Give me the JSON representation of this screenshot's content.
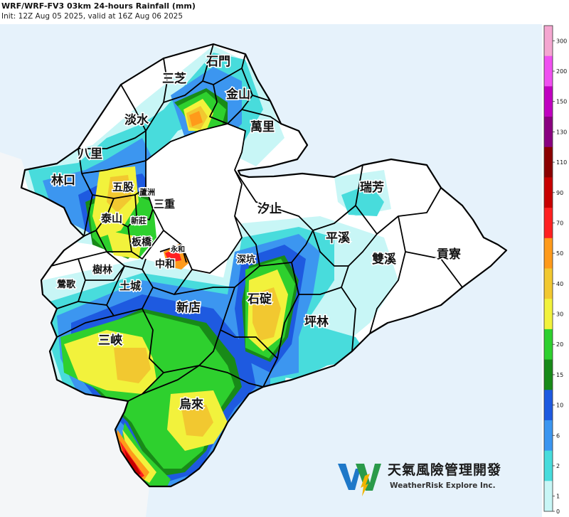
{
  "header": {
    "title": "WRF/WRF-FV3 03km 24-hours Rainfall (mm)",
    "subtitle": "Init: 12Z Aug 05 2025, valid at 16Z Aug 06 2025"
  },
  "districts": {
    "shimen": "石門",
    "sanzhi": "三芝",
    "jinshan": "金山",
    "tamsui": "淡水",
    "wanli": "萬里",
    "bali": "八里",
    "linkou": "林口",
    "wugu": "五股",
    "luzhou": "蘆洲",
    "taishan": "泰山",
    "sanchong": "三重",
    "xinzhuang": "新莊",
    "banqiao": "板橋",
    "yonghe": "永和",
    "zhonghe": "中和",
    "shulin": "樹林",
    "yingge": "鶯歌",
    "tucheng": "土城",
    "xindian": "新店",
    "sanxia": "三峽",
    "shenkeng": "深坑",
    "shiding": "石碇",
    "xizhi": "汐止",
    "pingxi": "平溪",
    "ruifang": "瑞芳",
    "shuangxi": "雙溪",
    "gongliao": "貢寮",
    "pinglin": "坪林",
    "wulai": "烏來"
  },
  "colorbar": {
    "unit": "mm",
    "ticks": [
      "300",
      "200",
      "150",
      "130",
      "110",
      "90",
      "70",
      "50",
      "40",
      "30",
      "20",
      "15",
      "10",
      "6",
      "2",
      "1",
      "0"
    ],
    "bins": [
      {
        "from": "200",
        "to": "300",
        "color": "#f4a6d0"
      },
      {
        "from": "150",
        "to": "200",
        "color": "#f050f0"
      },
      {
        "from": "130",
        "to": "150",
        "color": "#c000c0"
      },
      {
        "from": "110",
        "to": "130",
        "color": "#8a0080"
      },
      {
        "from": "90",
        "to": "110",
        "color": "#8b0000"
      },
      {
        "from": "70",
        "to": "90",
        "color": "#c80000"
      },
      {
        "from": "50",
        "to": "70",
        "color": "#ff2020"
      },
      {
        "from": "40",
        "to": "50",
        "color": "#ff9a1a"
      },
      {
        "from": "30",
        "to": "40",
        "color": "#f2c830"
      },
      {
        "from": "20",
        "to": "30",
        "color": "#f2f23c"
      },
      {
        "from": "15",
        "to": "20",
        "color": "#2ed02e"
      },
      {
        "from": "10",
        "to": "15",
        "color": "#188a18"
      },
      {
        "from": "6",
        "to": "10",
        "color": "#1e5ae0"
      },
      {
        "from": "2",
        "to": "6",
        "color": "#3c96f0"
      },
      {
        "from": "1",
        "to": "2",
        "color": "#48dcdc"
      },
      {
        "from": "0",
        "to": "1",
        "color": "#c8f6f6"
      }
    ]
  },
  "colors": {
    "sea": "#e6f2fb",
    "land": "#ffffff",
    "boundary": "#000000",
    "logo_blue": "#1e78c8",
    "logo_yellow": "#f0b400"
  },
  "logo": {
    "name_zh": "天氣風險管理開發",
    "name_en": "WeatherRisk Explore Inc."
  }
}
